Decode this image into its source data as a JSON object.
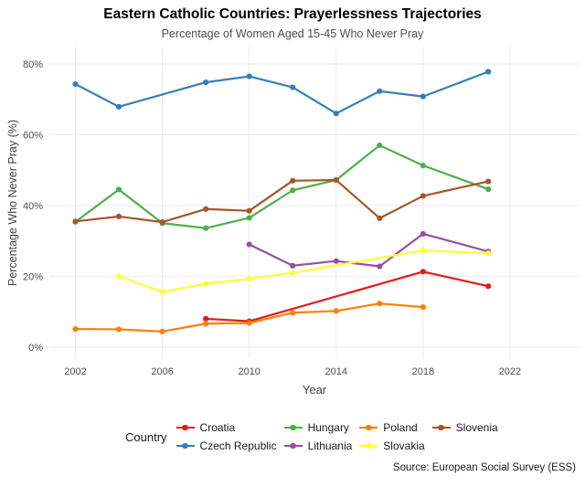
{
  "header": {
    "title": "Eastern Catholic Countries: Prayerlessness Trajectories",
    "subtitle": "Percentage of Women Aged 15-45 Who Never Pray"
  },
  "chart_data": {
    "type": "line",
    "title": "Eastern Catholic Countries: Prayerlessness Trajectories",
    "subtitle": "Percentage of Women Aged 15-45 Who Never Pray",
    "xlabel": "Year",
    "ylabel": "Percentage Who Never Pray (%)",
    "x_ticks": [
      2002,
      2006,
      2010,
      2014,
      2018,
      2022
    ],
    "y_ticks": [
      0,
      20,
      40,
      60,
      80
    ],
    "y_tick_suffix": "%",
    "xlim": [
      2000.8,
      2025.2
    ],
    "ylim": [
      -3.4,
      84.9
    ],
    "grid": true,
    "legend_position": "bottom",
    "series": [
      {
        "name": "Croatia",
        "color": "#E41A1C",
        "points": [
          [
            2008,
            8.0
          ],
          [
            2010,
            7.3
          ],
          [
            2018,
            21.3
          ],
          [
            2021,
            17.2
          ]
        ]
      },
      {
        "name": "Czech Republic",
        "color": "#377EB8",
        "points": [
          [
            2002,
            74.3
          ],
          [
            2004,
            67.9
          ],
          [
            2008,
            74.8
          ],
          [
            2010,
            76.5
          ],
          [
            2012,
            73.4
          ],
          [
            2014,
            66.0
          ],
          [
            2016,
            72.3
          ],
          [
            2018,
            70.8
          ],
          [
            2021,
            77.8
          ]
        ]
      },
      {
        "name": "Hungary",
        "color": "#4DAF4A",
        "points": [
          [
            2002,
            35.4
          ],
          [
            2004,
            44.5
          ],
          [
            2006,
            35.0
          ],
          [
            2008,
            33.6
          ],
          [
            2010,
            36.5
          ],
          [
            2012,
            44.3
          ],
          [
            2014,
            47.2
          ],
          [
            2016,
            57.0
          ],
          [
            2018,
            51.3
          ],
          [
            2021,
            44.6
          ]
        ]
      },
      {
        "name": "Lithuania",
        "color": "#984EA3",
        "points": [
          [
            2010,
            29.0
          ],
          [
            2012,
            23.0
          ],
          [
            2014,
            24.3
          ],
          [
            2016,
            22.8
          ],
          [
            2018,
            32.0
          ],
          [
            2021,
            27.0
          ]
        ]
      },
      {
        "name": "Poland",
        "color": "#FF7F00",
        "points": [
          [
            2002,
            5.1
          ],
          [
            2004,
            5.0
          ],
          [
            2006,
            4.4
          ],
          [
            2008,
            6.6
          ],
          [
            2010,
            6.8
          ],
          [
            2012,
            9.7
          ],
          [
            2014,
            10.2
          ],
          [
            2016,
            12.3
          ],
          [
            2018,
            11.3
          ]
        ]
      },
      {
        "name": "Slovakia",
        "color": "#FFFF33",
        "points": [
          [
            2004,
            20.0
          ],
          [
            2006,
            15.6
          ],
          [
            2008,
            17.9
          ],
          [
            2010,
            19.3
          ],
          [
            2012,
            21.0
          ],
          [
            2018,
            27.3
          ],
          [
            2021,
            26.5
          ]
        ]
      },
      {
        "name": "Slovenia",
        "color": "#A65628",
        "points": [
          [
            2002,
            35.5
          ],
          [
            2004,
            36.9
          ],
          [
            2006,
            35.3
          ],
          [
            2008,
            39.0
          ],
          [
            2010,
            38.5
          ],
          [
            2012,
            47.0
          ],
          [
            2014,
            47.2
          ],
          [
            2016,
            36.4
          ],
          [
            2018,
            42.7
          ],
          [
            2021,
            46.8
          ]
        ]
      }
    ]
  },
  "legend": {
    "title": "Country",
    "columns": [
      [
        "Croatia",
        "Czech Republic"
      ],
      [
        "Hungary",
        "Lithuania"
      ],
      [
        "Poland",
        "Slovakia"
      ],
      [
        "Slovenia"
      ]
    ]
  },
  "source_note": "Source: European Social Survey (ESS)",
  "style": {
    "gridline_color": "#ebebeb",
    "tick_label_color": "#4d4d4d",
    "subtitle_color": "#4d4d4d"
  }
}
